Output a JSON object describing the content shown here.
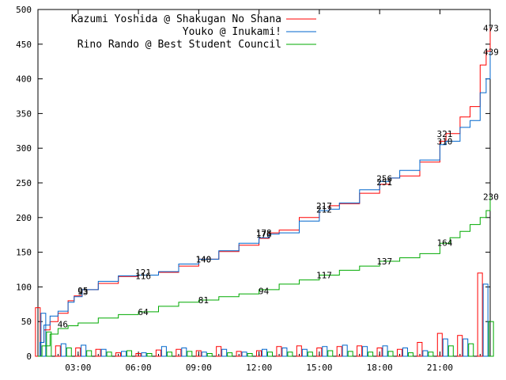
{
  "chart_data": {
    "type": "line",
    "x_ticks": [
      "03:00",
      "06:00",
      "09:00",
      "12:00",
      "15:00",
      "18:00",
      "21:00"
    ],
    "xlim_hours": [
      1,
      23.5
    ],
    "ylim": [
      0,
      500
    ],
    "y_ticks": [
      0,
      50,
      100,
      150,
      200,
      250,
      300,
      350,
      400,
      450,
      500
    ],
    "grid": false,
    "legend_position": "top-left",
    "series": [
      {
        "name": "Kazumi Yoshida @ Shakugan No Shana",
        "color": "#ff0000",
        "points": [
          [
            1,
            0
          ],
          [
            1.1,
            20
          ],
          [
            1.3,
            38
          ],
          [
            1.6,
            50
          ],
          [
            2,
            62
          ],
          [
            2.5,
            80
          ],
          [
            2.8,
            87
          ],
          [
            3.2,
            96
          ],
          [
            4,
            105
          ],
          [
            5,
            115
          ],
          [
            6,
            117
          ],
          [
            7,
            121
          ],
          [
            8,
            130
          ],
          [
            9,
            140
          ],
          [
            10,
            151
          ],
          [
            11,
            160
          ],
          [
            12,
            170
          ],
          [
            12.5,
            178
          ],
          [
            13,
            182
          ],
          [
            14,
            200
          ],
          [
            15,
            210
          ],
          [
            15.5,
            217
          ],
          [
            16,
            220
          ],
          [
            17,
            235
          ],
          [
            18,
            248
          ],
          [
            18.5,
            257
          ],
          [
            19,
            260
          ],
          [
            20,
            280
          ],
          [
            21,
            310
          ],
          [
            21.3,
            321
          ],
          [
            22,
            345
          ],
          [
            22.5,
            360
          ],
          [
            23,
            420
          ],
          [
            23.3,
            440
          ],
          [
            23.5,
            473
          ]
        ],
        "labels": [
          [
            3,
            95,
            "95"
          ],
          [
            6,
            121,
            "121"
          ],
          [
            9,
            140,
            "140"
          ],
          [
            12,
            178,
            "178"
          ],
          [
            15,
            217,
            "217"
          ],
          [
            18,
            256,
            "256"
          ],
          [
            21,
            321,
            "321"
          ],
          [
            23.3,
            473,
            "473"
          ]
        ]
      },
      {
        "name": "Youko @ Inukami!",
        "color": "#0066cc",
        "points": [
          [
            1,
            0
          ],
          [
            1.1,
            20
          ],
          [
            1.3,
            45
          ],
          [
            1.6,
            58
          ],
          [
            2,
            65
          ],
          [
            2.5,
            78
          ],
          [
            2.8,
            86
          ],
          [
            3.2,
            96
          ],
          [
            4,
            108
          ],
          [
            5,
            116
          ],
          [
            6,
            117
          ],
          [
            7,
            122
          ],
          [
            8,
            133
          ],
          [
            9,
            140
          ],
          [
            10,
            152
          ],
          [
            11,
            163
          ],
          [
            12,
            171
          ],
          [
            12.5,
            176
          ],
          [
            13,
            178
          ],
          [
            14,
            195
          ],
          [
            15,
            210
          ],
          [
            15.5,
            212
          ],
          [
            16,
            221
          ],
          [
            17,
            240
          ],
          [
            18,
            252
          ],
          [
            18.5,
            257
          ],
          [
            19,
            268
          ],
          [
            20,
            283
          ],
          [
            21,
            305
          ],
          [
            21.3,
            310
          ],
          [
            22,
            330
          ],
          [
            22.5,
            340
          ],
          [
            23,
            380
          ],
          [
            23.3,
            400
          ],
          [
            23.5,
            439
          ]
        ],
        "labels": [
          [
            3,
            93,
            "93"
          ],
          [
            6,
            116,
            "116"
          ],
          [
            9,
            140,
            "140"
          ],
          [
            12,
            176,
            "176"
          ],
          [
            15,
            212,
            "212"
          ],
          [
            18,
            251,
            "251"
          ],
          [
            21,
            310,
            "310"
          ],
          [
            23.3,
            439,
            "439"
          ]
        ]
      },
      {
        "name": "Rino Rando @ Best Student Council",
        "color": "#00aa00",
        "points": [
          [
            1,
            0
          ],
          [
            1.2,
            15
          ],
          [
            1.6,
            32
          ],
          [
            2,
            40
          ],
          [
            2.5,
            44
          ],
          [
            3,
            48
          ],
          [
            4,
            55
          ],
          [
            5,
            60
          ],
          [
            6,
            64
          ],
          [
            7,
            72
          ],
          [
            8,
            78
          ],
          [
            9,
            81
          ],
          [
            10,
            86
          ],
          [
            11,
            90
          ],
          [
            12,
            96
          ],
          [
            13,
            104
          ],
          [
            14,
            110
          ],
          [
            15,
            117
          ],
          [
            16,
            124
          ],
          [
            17,
            130
          ],
          [
            18,
            137
          ],
          [
            19,
            142
          ],
          [
            20,
            148
          ],
          [
            21,
            163
          ],
          [
            21.5,
            171
          ],
          [
            22,
            180
          ],
          [
            22.5,
            190
          ],
          [
            23,
            200
          ],
          [
            23.3,
            210
          ],
          [
            23.5,
            230
          ]
        ],
        "labels": [
          [
            2,
            46,
            "46"
          ],
          [
            6,
            64,
            "64"
          ],
          [
            9,
            81,
            "81"
          ],
          [
            12,
            94,
            "94"
          ],
          [
            15,
            117,
            "117"
          ],
          [
            18,
            137,
            "137"
          ],
          [
            21,
            164,
            "164"
          ],
          [
            23.3,
            230,
            "230"
          ]
        ]
      }
    ],
    "bar_groups": [
      {
        "hour": 1.25,
        "values": [
          70,
          62,
          35
        ]
      },
      {
        "hour": 2.25,
        "values": [
          15,
          18,
          12
        ]
      },
      {
        "hour": 3.25,
        "values": [
          12,
          16,
          8
        ]
      },
      {
        "hour": 4.25,
        "values": [
          10,
          10,
          6
        ]
      },
      {
        "hour": 5.25,
        "values": [
          5,
          7,
          8
        ]
      },
      {
        "hour": 6.25,
        "values": [
          4,
          5,
          4
        ]
      },
      {
        "hour": 7.25,
        "values": [
          9,
          14,
          6
        ]
      },
      {
        "hour": 8.25,
        "values": [
          10,
          12,
          7
        ]
      },
      {
        "hour": 9.25,
        "values": [
          8,
          6,
          4
        ]
      },
      {
        "hour": 10.25,
        "values": [
          14,
          10,
          5
        ]
      },
      {
        "hour": 11.25,
        "values": [
          7,
          6,
          4
        ]
      },
      {
        "hour": 12.25,
        "values": [
          8,
          10,
          6
        ]
      },
      {
        "hour": 13.25,
        "values": [
          14,
          12,
          6
        ]
      },
      {
        "hour": 14.25,
        "values": [
          15,
          10,
          6
        ]
      },
      {
        "hour": 15.25,
        "values": [
          12,
          14,
          8
        ]
      },
      {
        "hour": 16.25,
        "values": [
          14,
          16,
          7
        ]
      },
      {
        "hour": 17.25,
        "values": [
          15,
          14,
          6
        ]
      },
      {
        "hour": 18.25,
        "values": [
          12,
          15,
          7
        ]
      },
      {
        "hour": 19.25,
        "values": [
          10,
          12,
          5
        ]
      },
      {
        "hour": 20.25,
        "values": [
          20,
          8,
          6
        ]
      },
      {
        "hour": 21.25,
        "values": [
          33,
          25,
          15
        ]
      },
      {
        "hour": 22.25,
        "values": [
          30,
          25,
          18
        ]
      },
      {
        "hour": 23.25,
        "values": [
          120,
          104,
          50
        ]
      }
    ]
  }
}
